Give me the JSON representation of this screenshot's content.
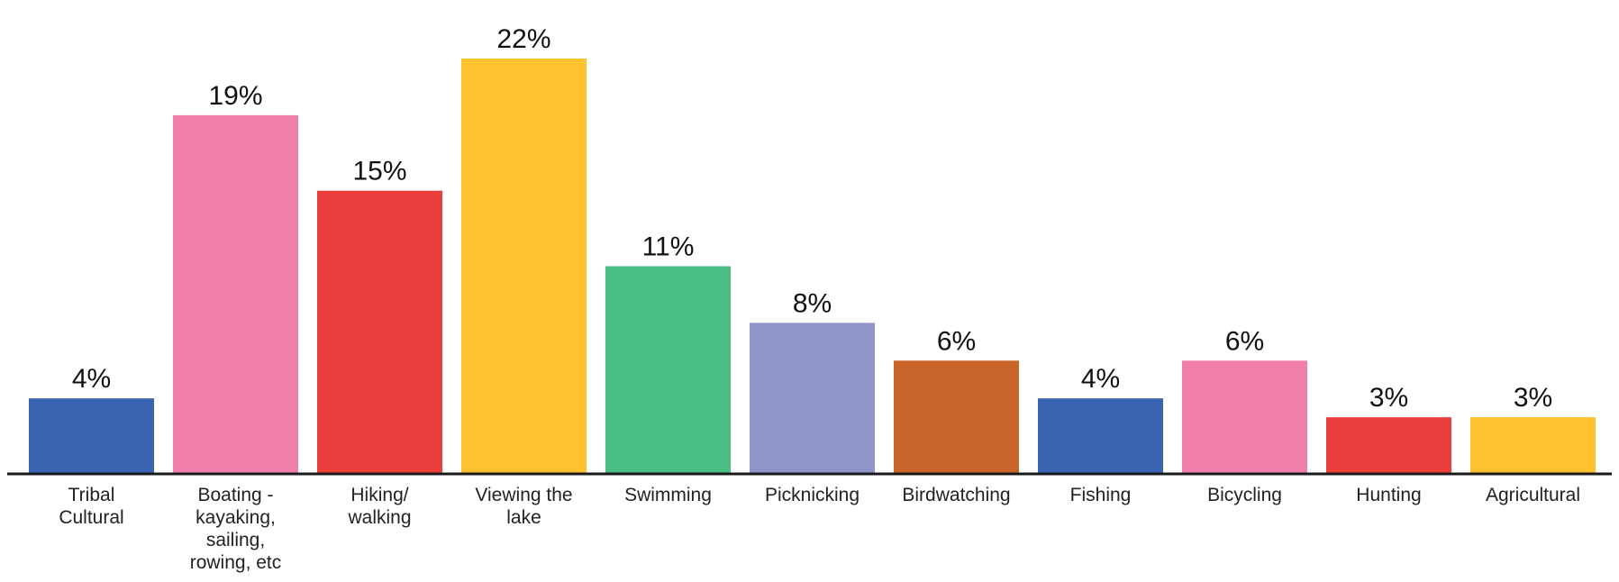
{
  "chart_data": {
    "type": "bar",
    "categories": [
      [
        "Tribal",
        "Cultural"
      ],
      [
        "Boating -",
        "kayaking,",
        "sailing,",
        "rowing, etc"
      ],
      [
        "Hiking/",
        "walking"
      ],
      [
        "Viewing the",
        "lake"
      ],
      [
        "Swimming"
      ],
      [
        "Picknicking"
      ],
      [
        "Birdwatching"
      ],
      [
        "Fishing"
      ],
      [
        "Bicycling"
      ],
      [
        "Hunting"
      ],
      [
        "Agricultural"
      ]
    ],
    "values": [
      4,
      19,
      15,
      22,
      11,
      8,
      6,
      4,
      6,
      3,
      3
    ],
    "value_labels": [
      "4%",
      "19%",
      "15%",
      "22%",
      "11%",
      "8%",
      "6%",
      "4%",
      "6%",
      "3%",
      "3%"
    ],
    "colors": [
      "#3a63b1",
      "#f07fab",
      "#e93e3c",
      "#fec22f",
      "#4bbe85",
      "#9194c8",
      "#c9652b",
      "#3a63b1",
      "#f07fab",
      "#e93e3c",
      "#fec22f"
    ],
    "axis_color": "#1a1a1a",
    "ylim": [
      0,
      22
    ]
  }
}
